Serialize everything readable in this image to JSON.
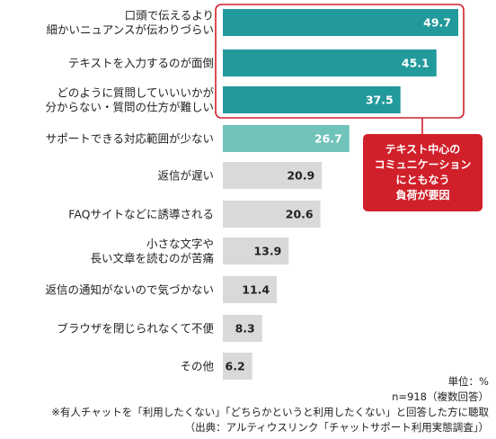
{
  "chart_data": {
    "type": "bar",
    "orientation": "horizontal",
    "categories": [
      [
        "口頭で伝えるより",
        "細かいニュアンスが伝わりづらい"
      ],
      [
        "テキストを入力するのが面倒"
      ],
      [
        "どのように質問していいいかが",
        "分からない・質問の仕方が難しい"
      ],
      [
        "サポートできる対応範囲が少ない"
      ],
      [
        "返信が遅い"
      ],
      [
        "FAQサイトなどに誘導される"
      ],
      [
        "小さな文字や",
        "長い文章を読むのが苦痛"
      ],
      [
        "返信の通知がないので気づかない"
      ],
      [
        "ブラウザを閉じられなくて不便"
      ],
      [
        "その他"
      ]
    ],
    "values": [
      49.7,
      45.1,
      37.5,
      26.7,
      20.9,
      20.6,
      13.9,
      11.4,
      8.3,
      6.2
    ],
    "value_labels": [
      "49.7",
      "45.1",
      "37.5",
      "26.7",
      "20.9",
      "20.6",
      "13.9",
      "11.4",
      "8.3",
      "6.2"
    ],
    "xlim": [
      0,
      50
    ],
    "highlight_group": [
      0,
      1,
      2
    ],
    "colors": {
      "top3": "#22999b",
      "fourth": "#6fc3b9",
      "rest": "#d9d9d9",
      "highlight_border": "#d0202a",
      "value_on_dark": "#ffffff",
      "value_on_light": "#222222"
    },
    "annotation": [
      "テキスト中心の",
      "コミュニケーション",
      "にともなう",
      "負荷が要因"
    ],
    "unit": "単位：%"
  },
  "footer": {
    "sample": "n=918（複数回答）",
    "note": "※有人チャットを「利用したくない」「どちらかというと利用したくない」と回答した方に聴取",
    "source": "（出典：アルティウスリンク「チャットサポート利用実態調査」）"
  }
}
